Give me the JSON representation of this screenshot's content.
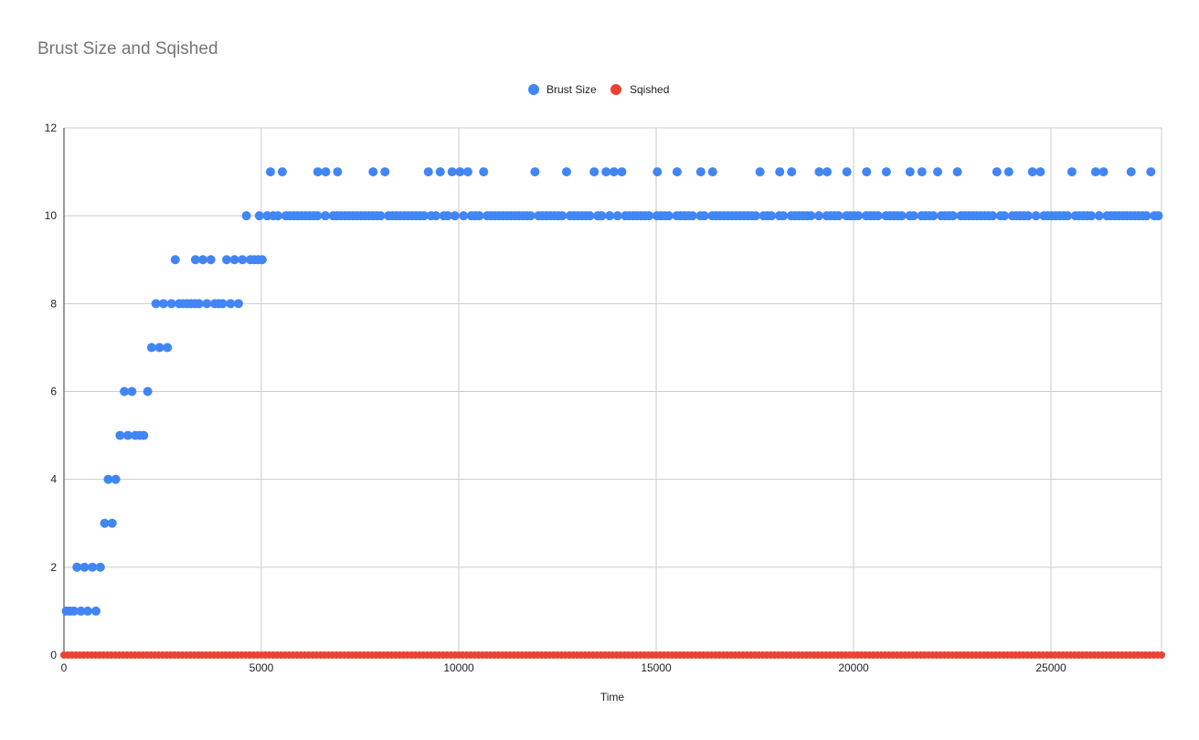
{
  "chart_data": {
    "type": "scatter",
    "title": "Brust Size and Sqished",
    "xlabel": "Time",
    "ylabel": "",
    "xlim": [
      0,
      27800
    ],
    "ylim": [
      0,
      12
    ],
    "x_ticks": [
      0,
      5000,
      10000,
      15000,
      20000,
      25000
    ],
    "y_ticks": [
      0,
      2,
      4,
      6,
      8,
      10,
      12
    ],
    "grid": true,
    "legend_position": "top",
    "series": [
      {
        "name": "Brust Size",
        "color": "#4285f4",
        "points": [
          [
            60,
            1
          ],
          [
            150,
            1
          ],
          [
            250,
            1
          ],
          [
            430,
            1
          ],
          [
            600,
            1
          ],
          [
            810,
            1
          ],
          [
            330,
            2
          ],
          [
            520,
            2
          ],
          [
            720,
            2
          ],
          [
            920,
            2
          ],
          [
            1030,
            3
          ],
          [
            1220,
            3
          ],
          [
            1120,
            4
          ],
          [
            1310,
            4
          ],
          [
            1420,
            5
          ],
          [
            1620,
            5
          ],
          [
            1810,
            5
          ],
          [
            1920,
            5
          ],
          [
            2020,
            5
          ],
          [
            1530,
            6
          ],
          [
            1720,
            6
          ],
          [
            2120,
            6
          ],
          [
            2220,
            7
          ],
          [
            2420,
            7
          ],
          [
            2620,
            7
          ],
          [
            2330,
            8
          ],
          [
            2520,
            8
          ],
          [
            2720,
            8
          ],
          [
            2920,
            8
          ],
          [
            3020,
            8
          ],
          [
            3120,
            8
          ],
          [
            3220,
            8
          ],
          [
            3320,
            8
          ],
          [
            3420,
            8
          ],
          [
            3620,
            8
          ],
          [
            3820,
            8
          ],
          [
            3920,
            8
          ],
          [
            4020,
            8
          ],
          [
            4220,
            8
          ],
          [
            4420,
            8
          ],
          [
            2820,
            9
          ],
          [
            3330,
            9
          ],
          [
            3520,
            9
          ],
          [
            3720,
            9
          ],
          [
            4120,
            9
          ],
          [
            4320,
            9
          ],
          [
            4520,
            9
          ],
          [
            4720,
            9
          ],
          [
            4820,
            9
          ],
          [
            4920,
            9
          ],
          [
            5020,
            9
          ],
          [
            4620,
            10
          ],
          [
            4950,
            10
          ],
          [
            5150,
            10
          ],
          [
            5300,
            10
          ],
          [
            5420,
            10
          ],
          [
            5620,
            10
          ],
          [
            5720,
            10
          ],
          [
            5820,
            10
          ],
          [
            5920,
            10
          ],
          [
            6020,
            10
          ],
          [
            6120,
            10
          ],
          [
            6220,
            10
          ],
          [
            6320,
            10
          ],
          [
            6420,
            10
          ],
          [
            6620,
            10
          ],
          [
            6820,
            10
          ],
          [
            6920,
            10
          ],
          [
            7020,
            10
          ],
          [
            7120,
            10
          ],
          [
            7220,
            10
          ],
          [
            7320,
            10
          ],
          [
            7420,
            10
          ],
          [
            7520,
            10
          ],
          [
            7620,
            10
          ],
          [
            7720,
            10
          ],
          [
            7820,
            10
          ],
          [
            7920,
            10
          ],
          [
            8020,
            10
          ],
          [
            8220,
            10
          ],
          [
            8320,
            10
          ],
          [
            8420,
            10
          ],
          [
            8520,
            10
          ],
          [
            8620,
            10
          ],
          [
            8720,
            10
          ],
          [
            8820,
            10
          ],
          [
            8920,
            10
          ],
          [
            9020,
            10
          ],
          [
            9120,
            10
          ],
          [
            9300,
            10
          ],
          [
            9420,
            10
          ],
          [
            9620,
            10
          ],
          [
            9720,
            10
          ],
          [
            9900,
            10
          ],
          [
            10120,
            10
          ],
          [
            10320,
            10
          ],
          [
            10420,
            10
          ],
          [
            10520,
            10
          ],
          [
            10720,
            10
          ],
          [
            10820,
            10
          ],
          [
            10920,
            10
          ],
          [
            11020,
            10
          ],
          [
            11120,
            10
          ],
          [
            11220,
            10
          ],
          [
            11320,
            10
          ],
          [
            11420,
            10
          ],
          [
            11520,
            10
          ],
          [
            11620,
            10
          ],
          [
            11720,
            10
          ],
          [
            11820,
            10
          ],
          [
            12020,
            10
          ],
          [
            12120,
            10
          ],
          [
            12220,
            10
          ],
          [
            12320,
            10
          ],
          [
            12420,
            10
          ],
          [
            12520,
            10
          ],
          [
            12620,
            10
          ],
          [
            12820,
            10
          ],
          [
            12920,
            10
          ],
          [
            13020,
            10
          ],
          [
            13120,
            10
          ],
          [
            13220,
            10
          ],
          [
            13320,
            10
          ],
          [
            13520,
            10
          ],
          [
            13620,
            10
          ],
          [
            13820,
            10
          ],
          [
            14020,
            10
          ],
          [
            14220,
            10
          ],
          [
            14320,
            10
          ],
          [
            14420,
            10
          ],
          [
            14520,
            10
          ],
          [
            14620,
            10
          ],
          [
            14720,
            10
          ],
          [
            14820,
            10
          ],
          [
            15020,
            10
          ],
          [
            15120,
            10
          ],
          [
            15220,
            10
          ],
          [
            15320,
            10
          ],
          [
            15520,
            10
          ],
          [
            15620,
            10
          ],
          [
            15720,
            10
          ],
          [
            15820,
            10
          ],
          [
            15920,
            10
          ],
          [
            16120,
            10
          ],
          [
            16220,
            10
          ],
          [
            16420,
            10
          ],
          [
            16520,
            10
          ],
          [
            16620,
            10
          ],
          [
            16720,
            10
          ],
          [
            16820,
            10
          ],
          [
            16920,
            10
          ],
          [
            17020,
            10
          ],
          [
            17120,
            10
          ],
          [
            17220,
            10
          ],
          [
            17320,
            10
          ],
          [
            17420,
            10
          ],
          [
            17520,
            10
          ],
          [
            17720,
            10
          ],
          [
            17820,
            10
          ],
          [
            17920,
            10
          ],
          [
            18120,
            10
          ],
          [
            18220,
            10
          ],
          [
            18420,
            10
          ],
          [
            18520,
            10
          ],
          [
            18620,
            10
          ],
          [
            18720,
            10
          ],
          [
            18820,
            10
          ],
          [
            18920,
            10
          ],
          [
            19120,
            10
          ],
          [
            19320,
            10
          ],
          [
            19420,
            10
          ],
          [
            19520,
            10
          ],
          [
            19620,
            10
          ],
          [
            19820,
            10
          ],
          [
            19920,
            10
          ],
          [
            20020,
            10
          ],
          [
            20120,
            10
          ],
          [
            20320,
            10
          ],
          [
            20420,
            10
          ],
          [
            20520,
            10
          ],
          [
            20620,
            10
          ],
          [
            20820,
            10
          ],
          [
            20920,
            10
          ],
          [
            21020,
            10
          ],
          [
            21120,
            10
          ],
          [
            21220,
            10
          ],
          [
            21420,
            10
          ],
          [
            21520,
            10
          ],
          [
            21720,
            10
          ],
          [
            21820,
            10
          ],
          [
            21920,
            10
          ],
          [
            22020,
            10
          ],
          [
            22220,
            10
          ],
          [
            22320,
            10
          ],
          [
            22420,
            10
          ],
          [
            22520,
            10
          ],
          [
            22720,
            10
          ],
          [
            22820,
            10
          ],
          [
            22920,
            10
          ],
          [
            23020,
            10
          ],
          [
            23120,
            10
          ],
          [
            23220,
            10
          ],
          [
            23320,
            10
          ],
          [
            23420,
            10
          ],
          [
            23520,
            10
          ],
          [
            23720,
            10
          ],
          [
            23820,
            10
          ],
          [
            24020,
            10
          ],
          [
            24120,
            10
          ],
          [
            24220,
            10
          ],
          [
            24320,
            10
          ],
          [
            24420,
            10
          ],
          [
            24620,
            10
          ],
          [
            24820,
            10
          ],
          [
            24920,
            10
          ],
          [
            25020,
            10
          ],
          [
            25120,
            10
          ],
          [
            25220,
            10
          ],
          [
            25320,
            10
          ],
          [
            25420,
            10
          ],
          [
            25620,
            10
          ],
          [
            25720,
            10
          ],
          [
            25820,
            10
          ],
          [
            25920,
            10
          ],
          [
            26020,
            10
          ],
          [
            26220,
            10
          ],
          [
            26420,
            10
          ],
          [
            26520,
            10
          ],
          [
            26620,
            10
          ],
          [
            26720,
            10
          ],
          [
            26820,
            10
          ],
          [
            26920,
            10
          ],
          [
            27020,
            10
          ],
          [
            27120,
            10
          ],
          [
            27220,
            10
          ],
          [
            27320,
            10
          ],
          [
            27420,
            10
          ],
          [
            27620,
            10
          ],
          [
            27720,
            10
          ],
          [
            5230,
            11
          ],
          [
            5530,
            11
          ],
          [
            6430,
            11
          ],
          [
            6630,
            11
          ],
          [
            6930,
            11
          ],
          [
            7830,
            11
          ],
          [
            8130,
            11
          ],
          [
            9230,
            11
          ],
          [
            9530,
            11
          ],
          [
            9830,
            11
          ],
          [
            10030,
            11
          ],
          [
            10230,
            11
          ],
          [
            10630,
            11
          ],
          [
            11930,
            11
          ],
          [
            12730,
            11
          ],
          [
            13430,
            11
          ],
          [
            13730,
            11
          ],
          [
            13930,
            11
          ],
          [
            14130,
            11
          ],
          [
            15030,
            11
          ],
          [
            15530,
            11
          ],
          [
            16130,
            11
          ],
          [
            16430,
            11
          ],
          [
            17630,
            11
          ],
          [
            18130,
            11
          ],
          [
            18430,
            11
          ],
          [
            19130,
            11
          ],
          [
            19330,
            11
          ],
          [
            19830,
            11
          ],
          [
            20330,
            11
          ],
          [
            20830,
            11
          ],
          [
            21430,
            11
          ],
          [
            21730,
            11
          ],
          [
            22130,
            11
          ],
          [
            22630,
            11
          ],
          [
            23630,
            11
          ],
          [
            23930,
            11
          ],
          [
            24530,
            11
          ],
          [
            24730,
            11
          ],
          [
            25530,
            11
          ],
          [
            26130,
            11
          ],
          [
            26330,
            11
          ],
          [
            27030,
            11
          ],
          [
            27530,
            11
          ]
        ]
      },
      {
        "name": "Sqished",
        "color": "#ea4335",
        "x_start": 0,
        "x_end": 27800,
        "x_step": 100,
        "y": 0
      }
    ]
  }
}
